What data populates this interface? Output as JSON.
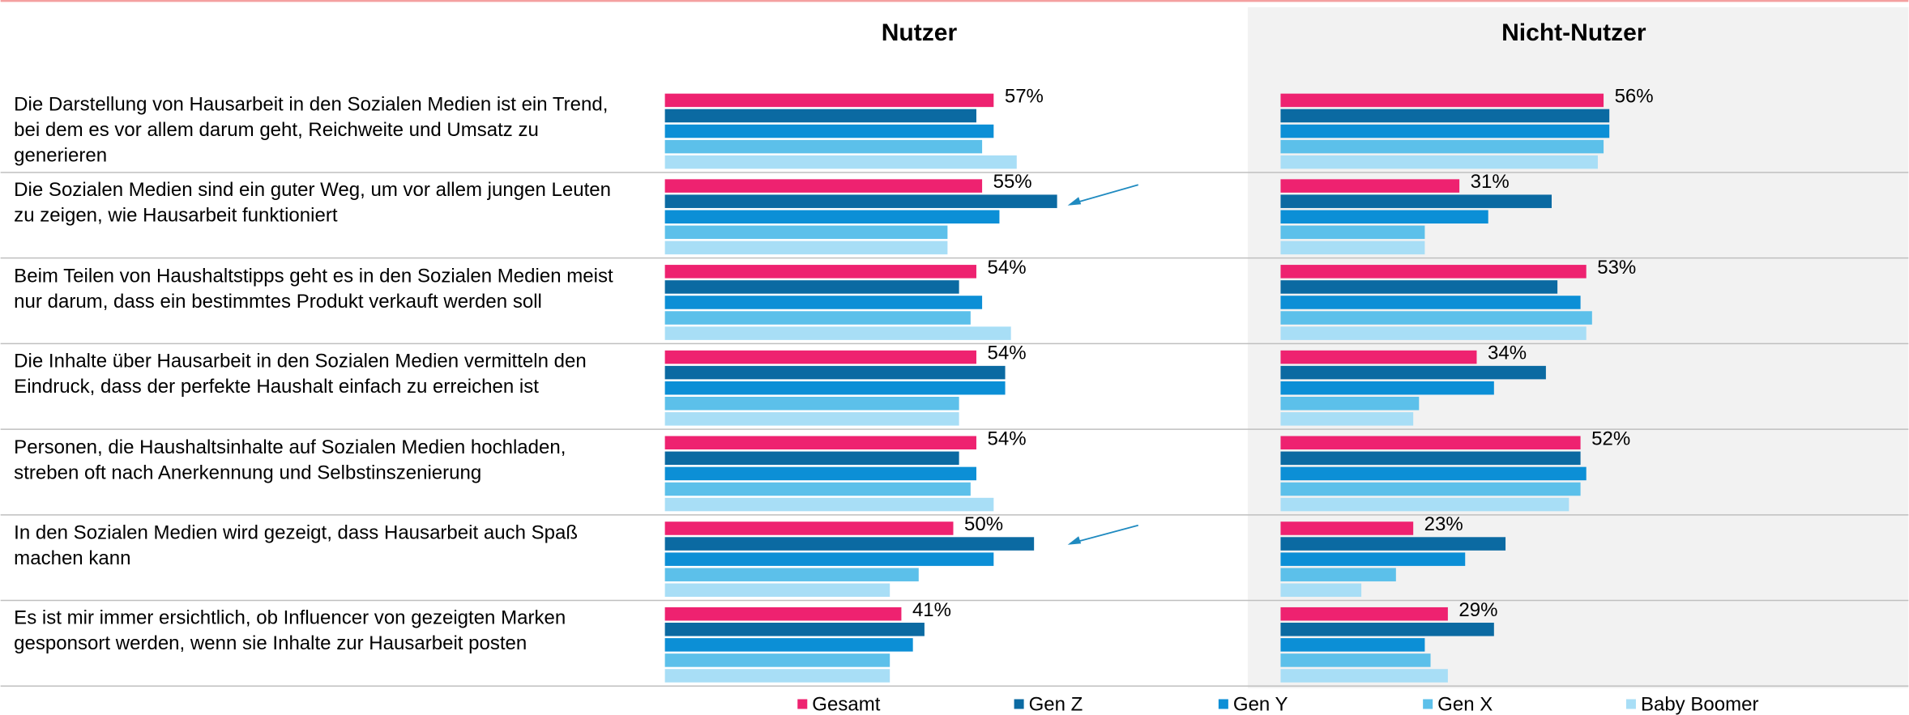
{
  "chart_data": {
    "type": "bar",
    "orientation": "horizontal",
    "categories": [
      "Die Darstellung von Hausarbeit in den Sozialen Medien ist ein Trend, bei dem es vor allem darum geht, Reichweite und Umsatz zu generieren",
      "Die Sozialen Medien sind ein guter Weg, um vor allem jungen Leuten zu zeigen, wie Hausarbeit funktioniert",
      "Beim Teilen von Haushaltstipps geht es in den Sozialen Medien meist nur darum, dass ein bestimmtes Produkt verkauft werden soll",
      "Die Inhalte über Hausarbeit in den Sozialen Medien vermitteln den Eindruck, dass der perfekte Haushalt einfach zu erreichen ist",
      "Personen, die Haushaltsinhalte auf Sozialen Medien hochladen, streben oft nach Anerkennung und Selbstinszenierung",
      "In den Sozialen Medien wird gezeigt, dass Hausarbeit auch Spaß machen kann",
      "Es ist mir immer ersichtlich, ob Influencer von gezeigten Marken gesponsort werden, wenn sie Inhalte zur Hausarbeit posten"
    ],
    "legend": "bottom",
    "panels": [
      {
        "title": "Nutzer",
        "xlim": [
          0,
          100
        ],
        "series": [
          {
            "name": "Gesamt",
            "color": "#ee2270",
            "values": [
              57,
              55,
              54,
              54,
              54,
              50,
              41
            ],
            "value_labels": [
              "57%",
              "55%",
              "54%",
              "54%",
              "54%",
              "50%",
              "41%"
            ]
          },
          {
            "name": "Gen Z",
            "color": "#0b6aa2",
            "values": [
              54,
              68,
              51,
              59,
              51,
              64,
              45
            ]
          },
          {
            "name": "Gen Y",
            "color": "#0c8fd6",
            "values": [
              57,
              58,
              55,
              59,
              54,
              57,
              43
            ]
          },
          {
            "name": "Gen X",
            "color": "#5cc0ea",
            "values": [
              55,
              49,
              53,
              51,
              53,
              44,
              39
            ]
          },
          {
            "name": "Baby Boomer",
            "color": "#a8def6",
            "values": [
              61,
              49,
              60,
              51,
              57,
              39,
              39
            ]
          }
        ]
      },
      {
        "title": "Nicht-Nutzer",
        "xlim": [
          0,
          100
        ],
        "series": [
          {
            "name": "Gesamt",
            "color": "#ee2270",
            "values": [
              56,
              31,
              53,
              34,
              52,
              23,
              29
            ],
            "value_labels": [
              "56%",
              "31%",
              "53%",
              "34%",
              "52%",
              "23%",
              "29%"
            ]
          },
          {
            "name": "Gen Z",
            "color": "#0b6aa2",
            "values": [
              57,
              47,
              48,
              46,
              52,
              39,
              37
            ]
          },
          {
            "name": "Gen Y",
            "color": "#0c8fd6",
            "values": [
              57,
              36,
              52,
              37,
              53,
              32,
              25
            ]
          },
          {
            "name": "Gen X",
            "color": "#5cc0ea",
            "values": [
              56,
              25,
              54,
              24,
              52,
              20,
              26
            ]
          },
          {
            "name": "Baby Boomer",
            "color": "#a8def6",
            "values": [
              55,
              25,
              53,
              23,
              50,
              14,
              29
            ]
          }
        ]
      }
    ]
  }
}
